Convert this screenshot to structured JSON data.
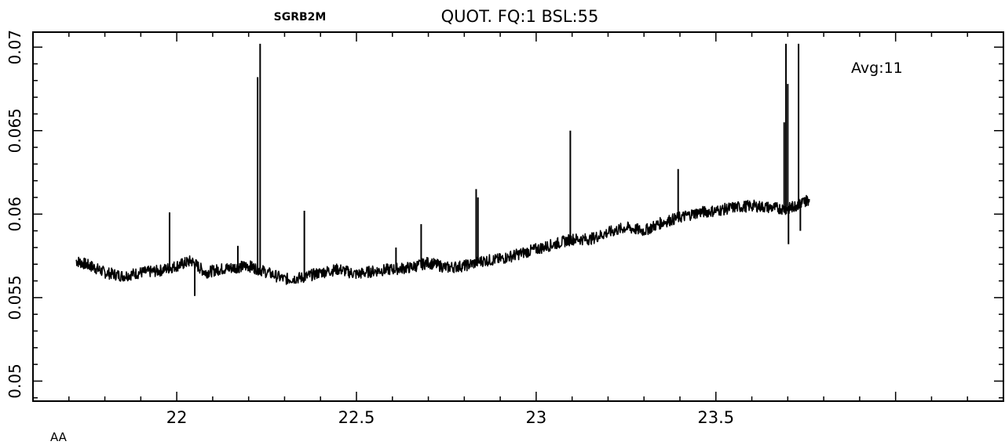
{
  "chart_data": {
    "type": "line",
    "title_left": "SGRB2M",
    "title": "QUOT. FQ:1 BSL:55",
    "annotation": "Avg:11",
    "xunit_label": "AA",
    "xlim": [
      21.6,
      24.3
    ],
    "ylim": [
      0.0488,
      0.0709
    ],
    "x_ticks": [
      22,
      22.5,
      23,
      23.5
    ],
    "x_tick_labels": [
      "22",
      "22.5",
      "23",
      "23.5"
    ],
    "y_ticks": [
      0.05,
      0.055,
      0.06,
      0.065,
      0.07
    ],
    "y_tick_labels": [
      "0.05",
      "0.055",
      "0.06",
      "0.065",
      "0.07"
    ],
    "grid": false,
    "legend": "none",
    "line_color": "#000000",
    "series": [
      {
        "x": [
          21.72,
          21.76,
          21.8,
          21.85,
          21.9,
          21.95,
          22.0,
          22.04,
          22.08,
          22.12,
          22.16,
          22.2,
          22.24,
          22.3,
          22.35,
          22.4,
          22.45,
          22.5,
          22.55,
          22.6,
          22.65,
          22.7,
          22.75,
          22.8,
          22.85,
          22.9,
          22.95,
          23.0,
          23.05,
          23.1,
          23.15,
          23.2,
          23.25,
          23.3,
          23.35,
          23.4,
          23.45,
          23.5,
          23.55,
          23.6,
          23.65,
          23.7,
          23.73,
          23.76
        ],
        "y": [
          0.0572,
          0.0569,
          0.0565,
          0.0563,
          0.0565,
          0.0566,
          0.0569,
          0.0572,
          0.0565,
          0.0567,
          0.0568,
          0.0569,
          0.0566,
          0.0561,
          0.0562,
          0.0565,
          0.0567,
          0.0564,
          0.0566,
          0.0567,
          0.0568,
          0.0571,
          0.0568,
          0.0569,
          0.0572,
          0.0573,
          0.0576,
          0.0579,
          0.0582,
          0.0585,
          0.0585,
          0.0589,
          0.0592,
          0.059,
          0.0595,
          0.0598,
          0.0601,
          0.0602,
          0.0604,
          0.0605,
          0.0604,
          0.0603,
          0.0606,
          0.0609
        ]
      }
    ],
    "spikes": [
      {
        "x": 21.98,
        "y": 0.0601
      },
      {
        "x": 22.05,
        "y": 0.0551
      },
      {
        "x": 22.17,
        "y": 0.0581
      },
      {
        "x": 22.225,
        "y": 0.0682
      },
      {
        "x": 22.232,
        "y": 0.0702
      },
      {
        "x": 22.355,
        "y": 0.0602
      },
      {
        "x": 22.61,
        "y": 0.058
      },
      {
        "x": 22.68,
        "y": 0.0594
      },
      {
        "x": 22.833,
        "y": 0.0615
      },
      {
        "x": 22.838,
        "y": 0.061
      },
      {
        "x": 23.095,
        "y": 0.065
      },
      {
        "x": 23.395,
        "y": 0.0627
      },
      {
        "x": 23.69,
        "y": 0.0655
      },
      {
        "x": 23.695,
        "y": 0.0702
      },
      {
        "x": 23.7,
        "y": 0.0678
      },
      {
        "x": 23.702,
        "y": 0.0582
      },
      {
        "x": 23.73,
        "y": 0.0702
      },
      {
        "x": 23.735,
        "y": 0.059
      }
    ]
  }
}
